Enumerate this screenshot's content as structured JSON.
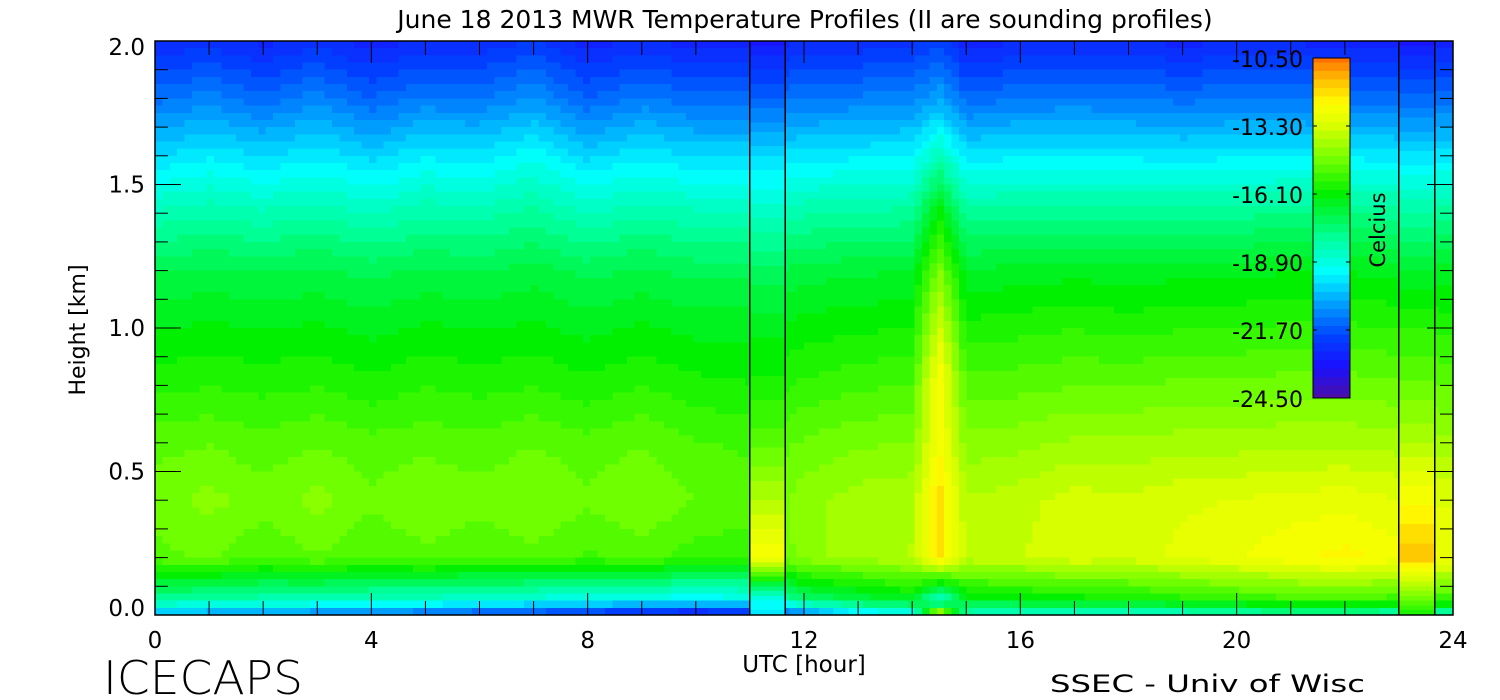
{
  "chart_data": {
    "type": "heatmap",
    "title": "June 18 2013 MWR Temperature Profiles (II are sounding profiles)",
    "xlabel": "UTC [hour]",
    "ylabel": "Height [km]",
    "xlim": [
      0,
      24
    ],
    "ylim": [
      0,
      2.0
    ],
    "x_ticks": [
      "0",
      "4",
      "8",
      "12",
      "16",
      "20",
      "24"
    ],
    "x_tick_values": [
      0,
      4,
      8,
      12,
      16,
      20,
      24
    ],
    "y_ticks": [
      "0.0",
      "0.5",
      "1.0",
      "1.5",
      "2.0"
    ],
    "y_tick_values": [
      0,
      0.5,
      1.0,
      1.5,
      2.0
    ],
    "colorbar": {
      "label": "Celcius",
      "range": [
        -24.5,
        -10.5
      ],
      "tick_labels": [
        "-10.50",
        "-13.30",
        "-16.10",
        "-18.90",
        "-21.70",
        "-24.50"
      ],
      "tick_values": [
        -10.5,
        -13.3,
        -16.1,
        -18.9,
        -21.7,
        -24.5
      ],
      "colormap": [
        [
          -24.5,
          "#4b0fa8"
        ],
        [
          -23.2,
          "#1a10ff"
        ],
        [
          -22.0,
          "#0040ff"
        ],
        [
          -20.6,
          "#00a0ff"
        ],
        [
          -19.3,
          "#00ffff"
        ],
        [
          -17.8,
          "#00ff90"
        ],
        [
          -16.1,
          "#00f000"
        ],
        [
          -14.7,
          "#70ff00"
        ],
        [
          -13.3,
          "#d8ff00"
        ],
        [
          -12.4,
          "#ffff00"
        ],
        [
          -11.4,
          "#ffc000"
        ],
        [
          -10.5,
          "#ff7000"
        ]
      ]
    },
    "heights": [
      0,
      0.05,
      0.2,
      0.4,
      0.6,
      0.8,
      1.0,
      1.2,
      1.4,
      1.6,
      1.8,
      2.0
    ],
    "times": [
      0,
      1,
      2,
      3,
      4,
      5,
      6,
      7,
      8,
      9,
      10,
      11,
      12,
      13,
      14,
      14.5,
      15,
      16,
      17,
      18,
      19,
      20,
      21,
      22,
      23,
      24
    ],
    "mwr_profiles": [
      [
        -20.5,
        -18.0,
        -15.0,
        -14.7,
        -15.0,
        -15.7,
        -16.3,
        -17.0,
        -18.3,
        -19.8,
        -21.3,
        -22.6
      ],
      [
        -20.8,
        -18.2,
        -14.8,
        -14.4,
        -14.9,
        -15.6,
        -16.2,
        -16.9,
        -18.1,
        -19.5,
        -21.0,
        -22.4
      ],
      [
        -21.0,
        -18.3,
        -15.2,
        -14.7,
        -15.1,
        -15.7,
        -16.3,
        -17.0,
        -18.3,
        -19.8,
        -21.4,
        -22.7
      ],
      [
        -21.2,
        -18.4,
        -14.9,
        -14.4,
        -14.9,
        -15.6,
        -16.2,
        -16.9,
        -18.1,
        -19.5,
        -21.0,
        -22.4
      ],
      [
        -21.5,
        -18.5,
        -15.2,
        -14.8,
        -15.1,
        -15.8,
        -16.4,
        -17.1,
        -18.4,
        -19.9,
        -21.5,
        -22.8
      ],
      [
        -21.6,
        -18.6,
        -15.0,
        -14.5,
        -15.0,
        -15.6,
        -16.2,
        -16.9,
        -18.1,
        -19.5,
        -21.1,
        -22.5
      ],
      [
        -22.0,
        -18.8,
        -15.2,
        -14.7,
        -15.1,
        -15.7,
        -16.3,
        -17.0,
        -18.2,
        -19.6,
        -21.2,
        -22.5
      ],
      [
        -22.3,
        -19.0,
        -15.0,
        -14.5,
        -14.9,
        -15.6,
        -16.2,
        -16.8,
        -17.9,
        -19.2,
        -20.8,
        -22.2
      ],
      [
        -22.6,
        -19.2,
        -15.3,
        -14.8,
        -15.1,
        -15.8,
        -16.4,
        -17.1,
        -18.4,
        -19.9,
        -21.5,
        -22.8
      ],
      [
        -23.0,
        -19.3,
        -15.1,
        -14.5,
        -14.9,
        -15.6,
        -16.2,
        -16.9,
        -18.1,
        -19.5,
        -21.1,
        -22.5
      ],
      [
        -23.2,
        -19.5,
        -15.4,
        -14.9,
        -15.2,
        -15.8,
        -16.4,
        -17.1,
        -18.3,
        -19.8,
        -21.4,
        -22.8
      ],
      [
        -23.0,
        -19.3,
        -15.5,
        -15.0,
        -15.3,
        -15.9,
        -16.4,
        -17.1,
        -18.3,
        -19.8,
        -21.4,
        -22.8
      ],
      [
        -21.5,
        -17.5,
        -14.3,
        -14.3,
        -14.8,
        -15.5,
        -16.1,
        -16.8,
        -18.1,
        -19.6,
        -21.2,
        -22.6
      ],
      [
        -20.0,
        -17.0,
        -14.0,
        -14.0,
        -14.6,
        -15.3,
        -16.0,
        -16.7,
        -18.0,
        -19.5,
        -21.1,
        -22.5
      ],
      [
        -19.5,
        -16.5,
        -13.8,
        -13.9,
        -14.5,
        -15.2,
        -15.9,
        -16.6,
        -17.9,
        -19.4,
        -21.0,
        -22.4
      ],
      [
        -12.5,
        -19.0,
        -12.0,
        -11.8,
        -12.5,
        -12.3,
        -13.3,
        -14.5,
        -16.0,
        -18.3,
        -20.5,
        -22.0
      ],
      [
        -18.5,
        -16.5,
        -13.6,
        -13.8,
        -14.4,
        -15.1,
        -15.8,
        -16.6,
        -17.9,
        -19.6,
        -21.4,
        -22.8
      ],
      [
        -19.0,
        -16.3,
        -13.5,
        -13.6,
        -14.3,
        -15.0,
        -15.7,
        -16.5,
        -17.8,
        -19.5,
        -21.2,
        -22.6
      ],
      [
        -19.0,
        -16.2,
        -13.2,
        -13.3,
        -14.1,
        -14.9,
        -15.6,
        -16.4,
        -17.8,
        -19.5,
        -21.1,
        -22.5
      ],
      [
        -19.0,
        -16.0,
        -13.3,
        -13.4,
        -14.1,
        -14.9,
        -15.7,
        -16.5,
        -17.8,
        -19.5,
        -21.2,
        -22.6
      ],
      [
        -18.8,
        -15.8,
        -13.0,
        -13.2,
        -14.0,
        -14.8,
        -15.6,
        -16.4,
        -17.8,
        -19.6,
        -21.3,
        -22.7
      ],
      [
        -18.5,
        -15.6,
        -12.8,
        -13.1,
        -14.0,
        -14.8,
        -15.6,
        -16.4,
        -17.8,
        -19.5,
        -21.2,
        -22.6
      ],
      [
        -18.3,
        -15.4,
        -12.5,
        -13.0,
        -13.9,
        -14.7,
        -15.5,
        -16.3,
        -17.7,
        -19.5,
        -21.2,
        -22.6
      ],
      [
        -18.3,
        -15.3,
        -12.3,
        -12.9,
        -13.9,
        -14.7,
        -15.5,
        -16.3,
        -17.7,
        -19.5,
        -21.3,
        -22.8
      ],
      [
        -18.5,
        -15.5,
        -12.6,
        -13.1,
        -14.0,
        -14.8,
        -15.6,
        -16.4,
        -17.8,
        -19.6,
        -21.3,
        -22.8
      ],
      [
        -18.5,
        -15.5,
        -12.8,
        -13.2,
        -14.1,
        -14.9,
        -15.7,
        -16.5,
        -17.9,
        -19.6,
        -21.3,
        -22.8
      ]
    ],
    "soundings": [
      {
        "start": 11.0,
        "end": 11.65,
        "profile": [
          -19.5,
          -19.3,
          -12.5,
          -13.8,
          -15.0,
          -15.8,
          -16.4,
          -17.2,
          -18.5,
          -19.8,
          -21.5,
          -23.0
        ]
      },
      {
        "start": 23.0,
        "end": 23.66,
        "profile": [
          -16.0,
          -15.0,
          -11.5,
          -12.5,
          -13.8,
          -14.8,
          -15.6,
          -16.6,
          -18.0,
          -19.7,
          -21.4,
          -23.0
        ]
      }
    ]
  },
  "footer": {
    "logo_text": "ICECAPS",
    "credit": "SSEC - Univ of Wisc"
  }
}
